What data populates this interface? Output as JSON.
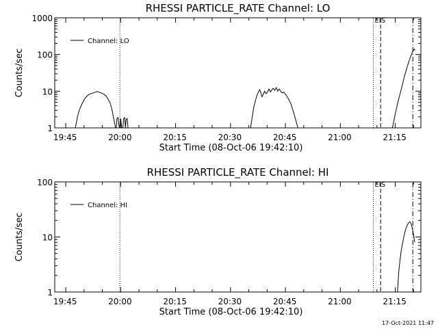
{
  "footer_timestamp": "17-Oct-2021 11:47",
  "chart_data": [
    {
      "type": "line",
      "title": "RHESSI PARTICLE_RATE Channel: LO",
      "xlabel": "Start Time (08-Oct-06 19:42:10)",
      "ylabel": "Counts/sec",
      "x_unit": "minutes since 19:42:10",
      "xlim": [
        0,
        100
      ],
      "ylim": [
        1,
        1000
      ],
      "yscale": "log",
      "x_ticks": [
        "19:45",
        "20:00",
        "20:15",
        "20:30",
        "20:45",
        "21:00",
        "21:15"
      ],
      "y_ticks": [
        "1",
        "10",
        "100",
        "1000"
      ],
      "legend": {
        "position": "top-left",
        "entries": [
          "Channel: LO"
        ]
      },
      "annotation": "EIS",
      "vlines": [
        {
          "x": 17.8,
          "style": "dotted"
        },
        {
          "x": 87.0,
          "style": "dotted"
        },
        {
          "x": 89.0,
          "style": "dashed"
        },
        {
          "x": 97.8,
          "style": "dashdot"
        }
      ],
      "series": [
        {
          "name": "Channel: LO",
          "segments": [
            [
              [
                5.6,
                1
              ],
              [
                5.9,
                1.4
              ],
              [
                6.2,
                2
              ],
              [
                6.6,
                2.8
              ],
              [
                7.0,
                3.6
              ],
              [
                7.5,
                4.6
              ],
              [
                8.0,
                5.8
              ],
              [
                8.6,
                7.0
              ],
              [
                9.2,
                8.0
              ],
              [
                9.9,
                8.6
              ],
              [
                10.5,
                9.0
              ],
              [
                11.1,
                9.4
              ],
              [
                11.6,
                9.8
              ],
              [
                12.1,
                9.4
              ],
              [
                12.6,
                9.0
              ],
              [
                13.1,
                8.6
              ],
              [
                13.6,
                8.0
              ],
              [
                14.1,
                7.2
              ],
              [
                14.6,
                6.0
              ],
              [
                15.1,
                4.8
              ],
              [
                15.5,
                3.6
              ],
              [
                15.8,
                2.6
              ],
              [
                16.1,
                1.8
              ],
              [
                16.4,
                1.3
              ],
              [
                16.6,
                1
              ]
            ],
            [
              [
                16.8,
                1
              ],
              [
                17.0,
                1.8
              ],
              [
                17.3,
                1.9
              ],
              [
                17.5,
                1.2
              ],
              [
                17.7,
                1
              ],
              [
                18.0,
                1.8
              ],
              [
                18.3,
                1
              ],
              [
                18.6,
                1
              ],
              [
                18.8,
                1.8
              ],
              [
                19.1,
                1.9
              ],
              [
                19.3,
                1
              ],
              [
                19.5,
                1.7
              ],
              [
                19.8,
                1.8
              ],
              [
                20.0,
                1
              ],
              [
                20.3,
                1
              ]
            ],
            [
              [
                53.5,
                1
              ],
              [
                53.8,
                1.6
              ],
              [
                54.1,
                2.5
              ],
              [
                54.4,
                3.8
              ],
              [
                54.8,
                5.5
              ],
              [
                55.2,
                7.5
              ],
              [
                55.6,
                9.5
              ],
              [
                56.0,
                11
              ],
              [
                56.3,
                9
              ],
              [
                56.6,
                7
              ],
              [
                56.9,
                8
              ],
              [
                57.3,
                10
              ],
              [
                57.7,
                8.5
              ],
              [
                58.1,
                9.5
              ],
              [
                58.5,
                11.5
              ],
              [
                58.9,
                9.5
              ],
              [
                59.3,
                11
              ],
              [
                59.7,
                12
              ],
              [
                60.1,
                10.5
              ],
              [
                60.5,
                12.5
              ],
              [
                60.9,
                10
              ],
              [
                61.3,
                11.5
              ],
              [
                61.7,
                10
              ],
              [
                62.1,
                9
              ],
              [
                62.5,
                9.5
              ],
              [
                62.9,
                8.5
              ],
              [
                63.3,
                7.5
              ],
              [
                63.7,
                6.5
              ],
              [
                64.1,
                5.5
              ],
              [
                64.5,
                4.5
              ],
              [
                64.9,
                3.4
              ],
              [
                65.3,
                2.5
              ],
              [
                65.7,
                1.8
              ],
              [
                66.1,
                1.3
              ],
              [
                66.4,
                1
              ]
            ],
            [
              [
                92.2,
                1
              ],
              [
                92.6,
                1.5
              ],
              [
                93.0,
                2.4
              ],
              [
                93.5,
                4
              ],
              [
                94.0,
                6.5
              ],
              [
                94.5,
                10
              ],
              [
                95.0,
                16
              ],
              [
                95.5,
                25
              ],
              [
                96.0,
                38
              ],
              [
                96.5,
                55
              ],
              [
                97.0,
                78
              ],
              [
                97.5,
                105
              ],
              [
                97.9,
                128
              ],
              [
                98.2,
                140
              ],
              [
                98.4,
                130
              ]
            ]
          ]
        }
      ]
    },
    {
      "type": "line",
      "title": "RHESSI PARTICLE_RATE Channel: HI",
      "xlabel": "Start Time (08-Oct-06 19:42:10)",
      "ylabel": "Counts/sec",
      "x_unit": "minutes since 19:42:10",
      "xlim": [
        0,
        100
      ],
      "ylim": [
        1,
        100
      ],
      "yscale": "log",
      "x_ticks": [
        "19:45",
        "20:00",
        "20:15",
        "20:30",
        "20:45",
        "21:00",
        "21:15"
      ],
      "y_ticks": [
        "1",
        "10",
        "100"
      ],
      "legend": {
        "position": "top-left",
        "entries": [
          "Channel: HI"
        ]
      },
      "annotation": "EIS",
      "vlines": [
        {
          "x": 17.8,
          "style": "dotted"
        },
        {
          "x": 87.0,
          "style": "dotted"
        },
        {
          "x": 89.0,
          "style": "dashed"
        },
        {
          "x": 97.8,
          "style": "dashdot"
        }
      ],
      "series": [
        {
          "name": "Channel: HI",
          "segments": [
            [
              [
                93.6,
                1
              ],
              [
                93.8,
                1.6
              ],
              [
                94.0,
                2.5
              ],
              [
                94.3,
                3.8
              ],
              [
                94.6,
                5.5
              ],
              [
                95.0,
                7.8
              ],
              [
                95.4,
                10.5
              ],
              [
                95.8,
                13.5
              ],
              [
                96.2,
                16
              ],
              [
                96.6,
                18
              ],
              [
                97.0,
                19
              ],
              [
                97.4,
                17
              ],
              [
                97.8,
                13
              ],
              [
                98.1,
                10
              ],
              [
                98.3,
                8
              ]
            ]
          ]
        }
      ]
    }
  ]
}
